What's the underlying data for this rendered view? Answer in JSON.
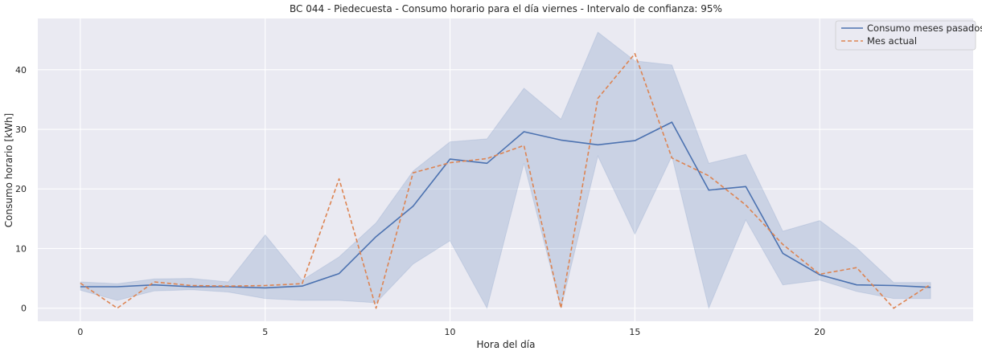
{
  "chart_data": {
    "type": "line",
    "title": "BC 044 - Piedecuesta - Consumo horario para el día viernes - Intervalo de confianza: 95%",
    "xlabel": "Hora del día",
    "ylabel": "Consumo horario [kWh]",
    "xlim": [
      -1.15,
      24.15
    ],
    "ylim": [
      -2.2,
      48.6
    ],
    "xticks": [
      0,
      5,
      10,
      15,
      20
    ],
    "yticks": [
      0,
      10,
      20,
      30,
      40
    ],
    "grid": true,
    "legend_position": "top-right",
    "x": [
      0,
      1,
      2,
      3,
      4,
      5,
      6,
      7,
      8,
      9,
      10,
      11,
      12,
      13,
      14,
      15,
      16,
      17,
      18,
      19,
      20,
      21,
      22,
      23
    ],
    "series": [
      {
        "name": "Consumo meses pasados",
        "style": "solid",
        "color": "#4c72b0",
        "values": [
          3.6,
          3.6,
          3.9,
          3.6,
          3.6,
          3.4,
          3.7,
          5.8,
          12.0,
          17.1,
          25.0,
          24.3,
          29.6,
          28.2,
          27.4,
          28.1,
          31.2,
          19.8,
          20.4,
          9.2,
          5.6,
          3.9,
          3.8,
          3.5
        ],
        "ci_lower": [
          3.0,
          1.3,
          2.9,
          3.1,
          2.7,
          1.6,
          1.3,
          1.3,
          0.9,
          7.4,
          11.3,
          0.0,
          24.3,
          0.0,
          25.5,
          12.4,
          25.5,
          0.0,
          14.8,
          3.9,
          4.7,
          2.8,
          1.6,
          1.6
        ],
        "ci_upper": [
          4.4,
          4.1,
          4.9,
          5.0,
          4.4,
          12.3,
          4.7,
          8.6,
          14.3,
          23.0,
          27.9,
          28.4,
          36.9,
          31.7,
          46.3,
          41.5,
          40.8,
          24.3,
          25.8,
          12.9,
          14.7,
          10.1,
          4.3,
          4.3
        ]
      },
      {
        "name": "Mes actual",
        "style": "dashed",
        "color": "#dd8452",
        "values": [
          4.2,
          0.0,
          4.4,
          3.8,
          3.7,
          3.8,
          4.1,
          21.7,
          0.0,
          22.7,
          24.4,
          25.1,
          27.3,
          0.0,
          35.2,
          42.7,
          25.2,
          22.2,
          17.3,
          10.7,
          5.7,
          6.8,
          0.0,
          4.0
        ]
      }
    ]
  },
  "colors": {
    "plot_background": "#eaeaf2",
    "grid": "#ffffff",
    "ci_fill": "#4c72b0"
  }
}
